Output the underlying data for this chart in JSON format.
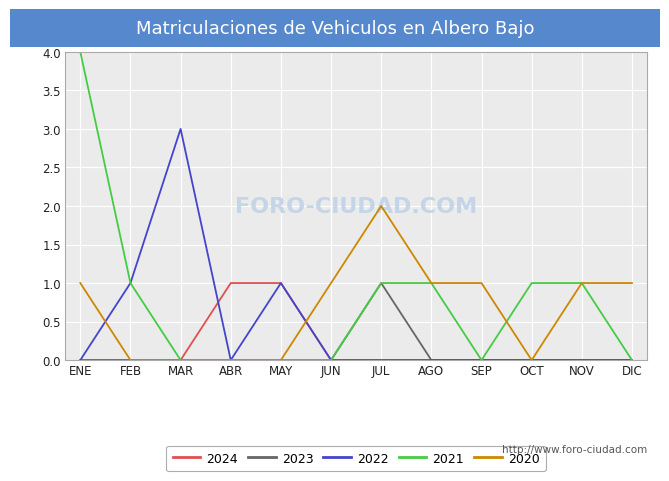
{
  "title": "Matriculaciones de Vehiculos en Albero Bajo",
  "months": [
    "ENE",
    "FEB",
    "MAR",
    "ABR",
    "MAY",
    "JUN",
    "JUL",
    "AGO",
    "SEP",
    "OCT",
    "NOV",
    "DIC"
  ],
  "series": {
    "2024": [
      0,
      0,
      0,
      1,
      1,
      0,
      0,
      0,
      0,
      0,
      0,
      0
    ],
    "2023": [
      0,
      0,
      0,
      0,
      0,
      0,
      1,
      0,
      0,
      0,
      0,
      0
    ],
    "2022": [
      0,
      1,
      3,
      0,
      1,
      0,
      0,
      0,
      0,
      0,
      0,
      0
    ],
    "2021": [
      4,
      1,
      0,
      0,
      0,
      0,
      1,
      1,
      0,
      1,
      1,
      0
    ],
    "2020": [
      1,
      0,
      0,
      0,
      0,
      1,
      2,
      1,
      1,
      0,
      1,
      1
    ]
  },
  "colors": {
    "2024": "#e05050",
    "2023": "#666666",
    "2022": "#4444cc",
    "2021": "#44cc44",
    "2020": "#cc8800"
  },
  "ylim": [
    0,
    4.0
  ],
  "yticks": [
    0.0,
    0.5,
    1.0,
    1.5,
    2.0,
    2.5,
    3.0,
    3.5,
    4.0
  ],
  "title_fontsize": 13,
  "title_bg_color": "#5588cc",
  "title_text_color": "#ffffff",
  "plot_bg_color": "#ebebeb",
  "plot_border_color": "#aaaaaa",
  "grid_color": "#ffffff",
  "watermark_text": "FORO-CIUDAD.COM",
  "watermark_color": "#c5d5e8",
  "url_text": "http://www.foro-ciudad.com",
  "legend_years": [
    "2024",
    "2023",
    "2022",
    "2021",
    "2020"
  ]
}
